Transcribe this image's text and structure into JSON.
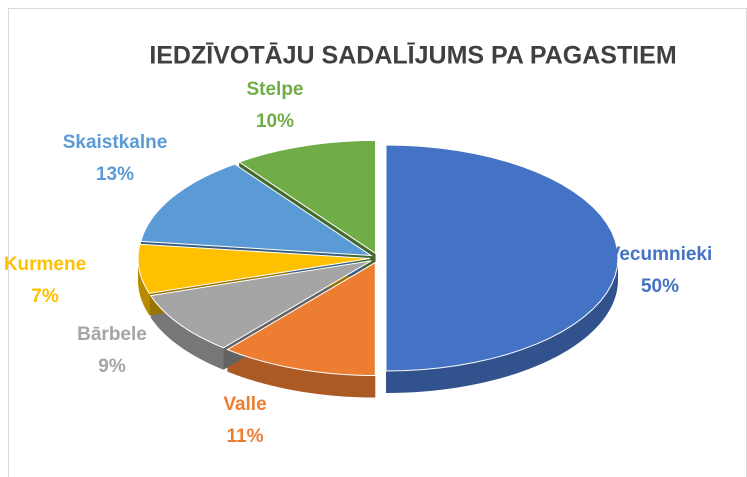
{
  "chart_data": {
    "type": "pie",
    "title": "IEDZĪVOTĀJU SADALĪJUMS PA PAGASTIEM",
    "categories": [
      "Vecumnieki",
      "Valle",
      "Bārbele",
      "Kurmene",
      "Skaistkalne",
      "Stelpe"
    ],
    "values": [
      50,
      11,
      9,
      7,
      13,
      10
    ],
    "value_labels": [
      "50%",
      "11%",
      "9%",
      "7%",
      "13%",
      "10%"
    ],
    "colors": [
      "#4472c4",
      "#ed7d31",
      "#a5a5a5",
      "#ffc000",
      "#5b9bd5",
      "#70ad47"
    ]
  }
}
